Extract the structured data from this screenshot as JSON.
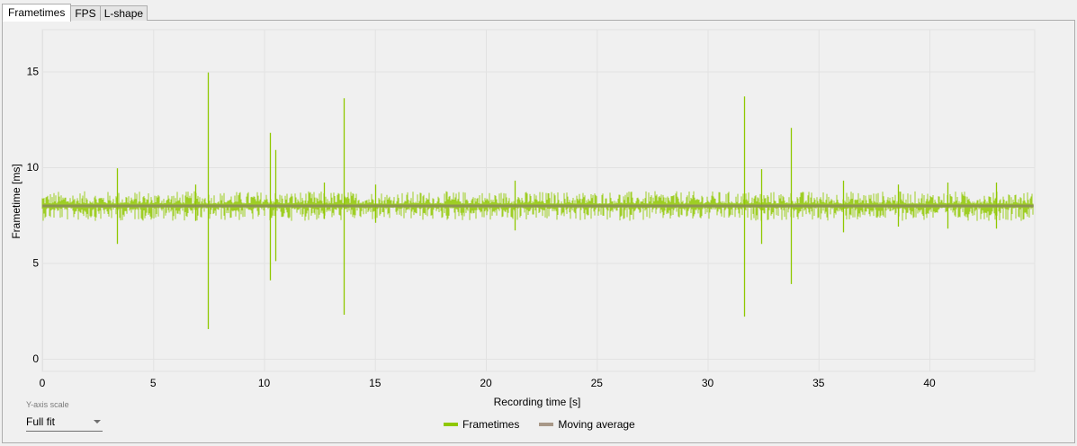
{
  "tabs": [
    {
      "label": "Frametimes",
      "active": true
    },
    {
      "label": "FPS",
      "active": false
    },
    {
      "label": "L-shape",
      "active": false
    }
  ],
  "controls": {
    "yscale_label": "Y-axis scale",
    "yscale_value": "Full fit"
  },
  "legend": [
    {
      "label": "Frametimes",
      "color": "#8fc800"
    },
    {
      "label": "Moving average",
      "color": "#a89888"
    }
  ],
  "chart_data": {
    "type": "line",
    "title": "",
    "xlabel": "Recording time [s]",
    "ylabel": "Frametime [ms]",
    "xlim": [
      0,
      44.7
    ],
    "ylim": [
      -0.7,
      17.2
    ],
    "xticks": [
      0,
      5,
      10,
      15,
      20,
      25,
      30,
      35,
      40
    ],
    "yticks": [
      0,
      5,
      10,
      15
    ],
    "grid": true,
    "legend_position": "bottom-center",
    "series": [
      {
        "name": "Frametimes",
        "color": "#8fc800",
        "baseline_ms": 8.0,
        "typical_range_ms": [
          7.3,
          8.7
        ],
        "spikes": [
          {
            "t": 3.35,
            "high": 9.95,
            "low": 6.0
          },
          {
            "t": 6.9,
            "high": 9.1,
            "low": 7.2
          },
          {
            "t": 7.47,
            "high": 14.95,
            "low": 1.55
          },
          {
            "t": 10.25,
            "high": 11.8,
            "low": 4.1
          },
          {
            "t": 10.5,
            "high": 10.9,
            "low": 5.1
          },
          {
            "t": 12.7,
            "high": 9.2,
            "low": 7.3
          },
          {
            "t": 13.6,
            "high": 13.6,
            "low": 2.3
          },
          {
            "t": 15.0,
            "high": 9.1,
            "low": 7.1
          },
          {
            "t": 21.3,
            "high": 9.3,
            "low": 6.7
          },
          {
            "t": 31.65,
            "high": 13.7,
            "low": 2.2
          },
          {
            "t": 32.4,
            "high": 9.9,
            "low": 6.0
          },
          {
            "t": 33.75,
            "high": 12.05,
            "low": 3.9
          },
          {
            "t": 36.1,
            "high": 9.3,
            "low": 6.6
          },
          {
            "t": 38.6,
            "high": 9.1,
            "low": 6.9
          },
          {
            "t": 40.8,
            "high": 9.2,
            "low": 6.8
          },
          {
            "t": 43.0,
            "high": 9.2,
            "low": 6.8
          }
        ]
      },
      {
        "name": "Moving average",
        "color": "#a89888",
        "values_ms": 7.98
      }
    ]
  }
}
